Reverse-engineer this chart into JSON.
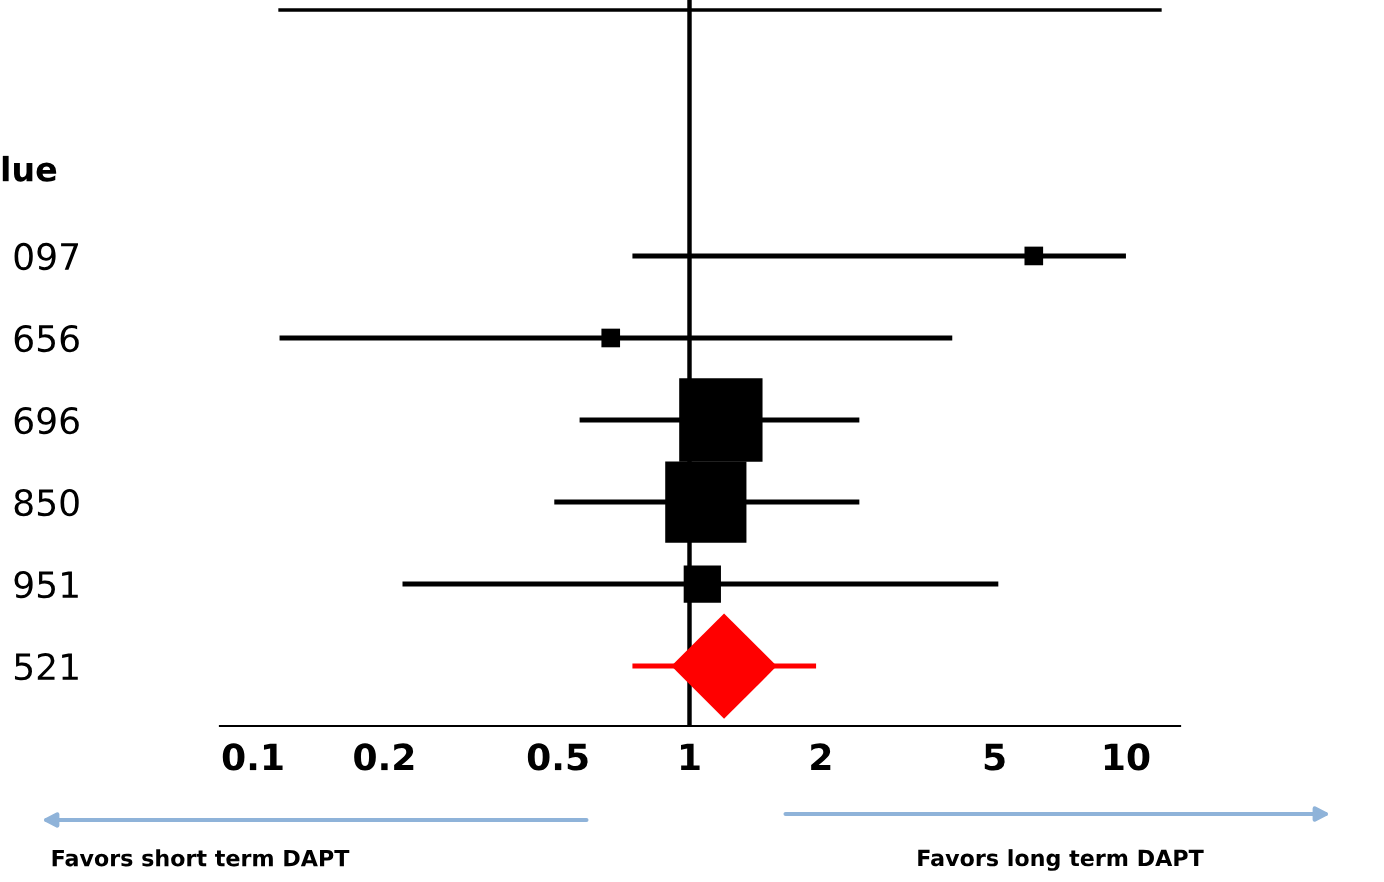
{
  "chart_data": {
    "type": "bubble",
    "orientation": "horizontal",
    "categories": [
      "097",
      "656",
      "696",
      "850",
      "951",
      "521"
    ],
    "series": [
      {
        "color": "#000000",
        "marker": "square",
        "values": [
          6.15,
          0.66,
          1.18,
          1.09,
          1.07,
          null
        ],
        "sizes": [
          0.05,
          0.05,
          1,
          0.95,
          0.2,
          null
        ],
        "errors": [
          [
            0.74,
            10
          ],
          [
            0.115,
            4.0
          ],
          [
            0.56,
            2.45
          ],
          [
            0.49,
            2.45
          ],
          [
            0.22,
            5.1
          ],
          null
        ]
      },
      {
        "color": "#ff0000",
        "marker": "diamond",
        "values": [
          null,
          null,
          null,
          null,
          null,
          1.2
        ],
        "sizes": [
          null,
          null,
          null,
          null,
          null,
          0.8
        ],
        "errors": [
          null,
          null,
          null,
          null,
          null,
          [
            0.74,
            1.95
          ]
        ]
      }
    ],
    "log": "x",
    "xlim": [
      0.084,
      13.3
    ],
    "xticks": [
      0.1,
      0.2,
      0.5,
      1,
      2,
      5,
      10
    ],
    "ref_lines": [
      {
        "axis": "x",
        "value": 1,
        "color": "#000000"
      }
    ],
    "annotations": [
      "lue",
      "Favors short term DAPT",
      "Favors long term DAPT"
    ],
    "grid": false,
    "legend": false
  }
}
